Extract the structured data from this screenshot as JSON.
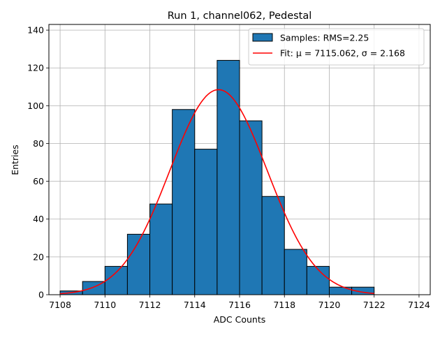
{
  "chart_data": {
    "type": "bar",
    "title": "Run 1, channel062, Pedestal",
    "xlabel": "ADC Counts",
    "ylabel": "Entries",
    "xlim": [
      7107.5,
      7124.5
    ],
    "ylim": [
      0,
      143
    ],
    "xticks": [
      7108,
      7110,
      7112,
      7114,
      7116,
      7118,
      7120,
      7122,
      7124
    ],
    "yticks": [
      0,
      20,
      40,
      60,
      80,
      100,
      120,
      140
    ],
    "grid": true,
    "legend_position": "top-right",
    "bin_edges": [
      7108,
      7109,
      7110,
      7111,
      7112,
      7113,
      7114,
      7115,
      7116,
      7117,
      7118,
      7119,
      7120,
      7121,
      7122
    ],
    "values": [
      2,
      7,
      15,
      32,
      48,
      98,
      77,
      124,
      92,
      52,
      24,
      15,
      4,
      4
    ],
    "fit": {
      "type": "gaussian",
      "mu": 7115.062,
      "sigma": 2.168,
      "amplitude": 108.5,
      "x_range": [
        7108,
        7122
      ]
    },
    "series": [
      {
        "name": "Samples: RMS=2.25",
        "kind": "histogram",
        "color": "#1f77b4",
        "edge_color": "#000000"
      },
      {
        "name": "Fit: μ = 7115.062, σ = 2.168",
        "kind": "line",
        "color": "#ff0000"
      }
    ]
  }
}
